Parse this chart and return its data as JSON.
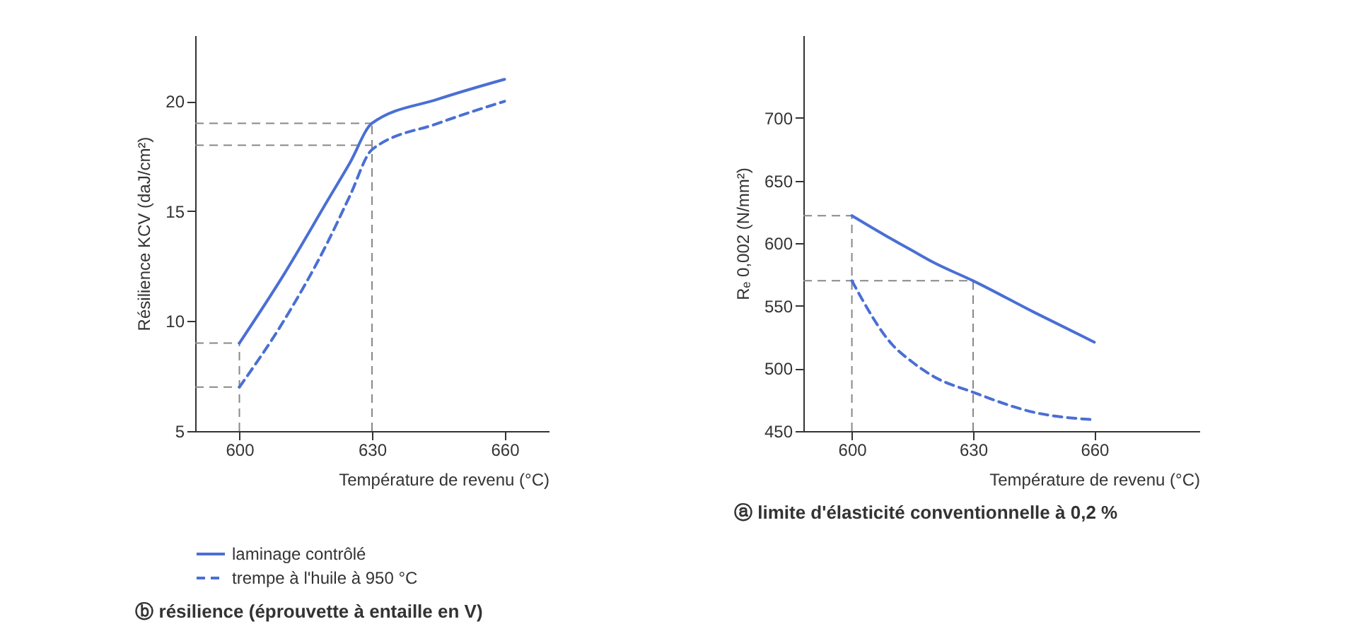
{
  "chart_data": [
    {
      "type": "line",
      "title": "ⓑ résilience (éprouvette à entaille en V)",
      "xlabel": "Température de revenu (°C)",
      "ylabel": "Résilience KCV (daJ/cm²)",
      "x": [
        600,
        610,
        620,
        625,
        630,
        645,
        660
      ],
      "series": [
        {
          "name": "laminage contrôlé",
          "color": "#4a6fd4",
          "line_style": "solid",
          "values": [
            9,
            12.1,
            15.5,
            17.2,
            19,
            20.1,
            21
          ]
        },
        {
          "name": "trempe à l'huile à 950 °C",
          "color": "#4a6fd4",
          "line_style": "dashed",
          "values": [
            7,
            10,
            13.6,
            15.7,
            17.8,
            19,
            20
          ]
        }
      ],
      "xlim": [
        590,
        670
      ],
      "xticks": [
        600,
        630,
        660
      ],
      "ylim": [
        5,
        23
      ],
      "yticks": [
        5,
        10,
        15,
        20
      ],
      "grid": false,
      "legend": "bottom left",
      "marker": "none",
      "ref_lines": [
        {
          "axis": "x",
          "value": 600,
          "color": "#888888",
          "line_style": "dashed"
        },
        {
          "axis": "x",
          "value": 630,
          "color": "#888888",
          "line_style": "dashed"
        },
        {
          "axis": "y",
          "value": 9,
          "color": "#888888",
          "line_style": "dashed"
        },
        {
          "axis": "y",
          "value": 7,
          "color": "#888888",
          "line_style": "dashed"
        },
        {
          "axis": "y",
          "value": 19,
          "color": "#888888",
          "line_style": "dashed"
        },
        {
          "axis": "y",
          "value": 18,
          "color": "#888888",
          "line_style": "dashed"
        }
      ]
    },
    {
      "type": "line",
      "title": "ⓐ limite d'élasticité conventionnelle à 0,2 %",
      "xlabel": "Température de revenu (°C)",
      "ylabel": "Rₑ 0,002 (N/mm²)",
      "x": [
        600,
        610,
        615,
        620,
        630,
        645,
        660
      ],
      "series": [
        {
          "color": "#4a6fd4",
          "line_style": "solid",
          "values": [
            622,
            603,
            594,
            585,
            570,
            545,
            521
          ]
        },
        {
          "color": "#4a6fd4",
          "line_style": "dashed",
          "values": [
            570,
            519,
            505,
            494,
            481,
            465,
            459
          ]
        }
      ],
      "xlim": [
        588,
        686
      ],
      "xticks": [
        600,
        630,
        660
      ],
      "ylim": [
        450,
        766
      ],
      "yticks": [
        450,
        500,
        550,
        600,
        650,
        700
      ],
      "grid": false,
      "marker": "none",
      "ref_lines": [
        {
          "axis": "x",
          "value": 600,
          "color": "#888888",
          "line_style": "dashed"
        },
        {
          "axis": "x",
          "value": 630,
          "color": "#888888",
          "line_style": "dashed"
        },
        {
          "axis": "y",
          "value": 622,
          "color": "#888888",
          "line_style": "dashed"
        },
        {
          "axis": "y",
          "value": 570,
          "color": "#888888",
          "line_style": "dashed"
        }
      ]
    }
  ]
}
